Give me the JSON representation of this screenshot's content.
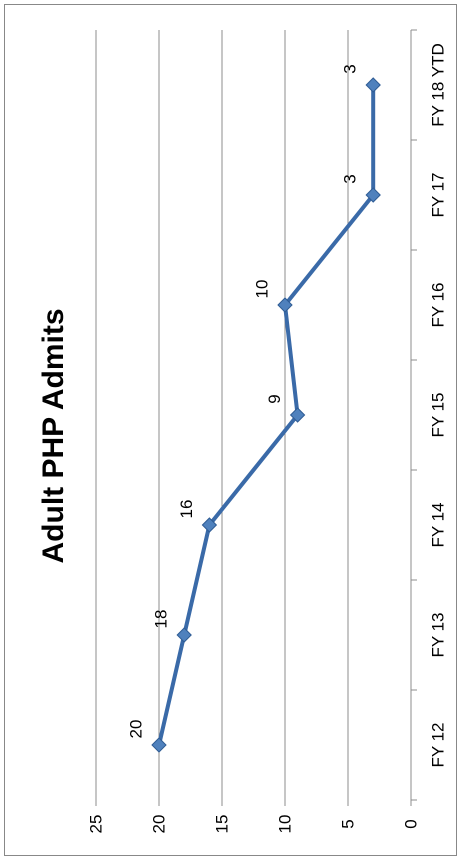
{
  "chart_data": {
    "type": "line",
    "title": "Adult PHP Admits",
    "categories": [
      "FY 12",
      "FY 13",
      "FY 14",
      "FY 15",
      "FY 16",
      "FY 17",
      "FY 18 YTD"
    ],
    "series": [
      {
        "values": [
          20,
          18,
          16,
          9,
          10,
          3,
          3
        ]
      }
    ],
    "data_labels": [
      "20",
      "18",
      "16",
      "9",
      "10",
      "3",
      "3"
    ],
    "ylim": [
      0,
      25
    ],
    "yticks": [
      0,
      5,
      10,
      15,
      20,
      25
    ],
    "ytick_labels": [
      "0",
      "5",
      "10",
      "15",
      "20",
      "25"
    ],
    "grid": true,
    "legend": "none",
    "orientation": "rotated-90-clockwise",
    "line_color": "#3a6aa8",
    "marker_color": "#4f81bd"
  }
}
